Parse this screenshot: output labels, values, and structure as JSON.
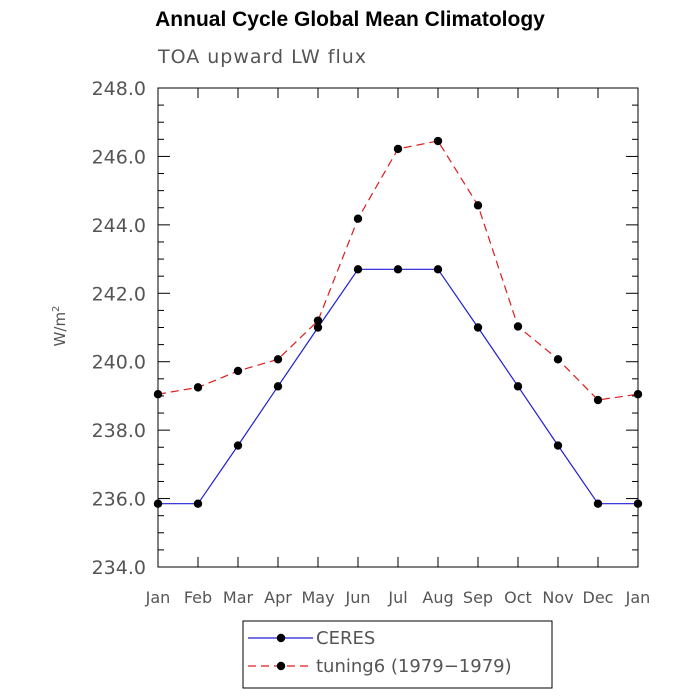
{
  "chart_data": {
    "type": "line",
    "title": "Annual Cycle Global Mean Climatology",
    "subtitle": "TOA upward LW flux",
    "ylabel": "W/m",
    "ylabel_superscript": "2",
    "xlabel": "",
    "categories": [
      "Jan",
      "Feb",
      "Mar",
      "Apr",
      "May",
      "Jun",
      "Jul",
      "Aug",
      "Sep",
      "Oct",
      "Nov",
      "Dec",
      "Jan"
    ],
    "ylim": [
      234.0,
      248.0
    ],
    "yticks": [
      "234.0",
      "236.0",
      "238.0",
      "240.0",
      "242.0",
      "244.0",
      "246.0",
      "248.0"
    ],
    "grid": false,
    "legend_placement": "bottom-center",
    "series": [
      {
        "name": "CERES",
        "color": "#1f1fd6",
        "dash": "solid",
        "values": [
          235.85,
          235.85,
          237.55,
          239.28,
          241.0,
          242.7,
          242.7,
          242.7,
          241.0,
          239.28,
          237.55,
          235.85,
          235.85
        ]
      },
      {
        "name": "tuning6 (1979−1979)",
        "color": "#e01b1b",
        "dash": "dashed",
        "values": [
          239.05,
          239.25,
          239.73,
          240.07,
          241.2,
          244.18,
          246.22,
          246.45,
          244.57,
          241.03,
          240.07,
          238.88,
          239.05
        ]
      }
    ]
  }
}
